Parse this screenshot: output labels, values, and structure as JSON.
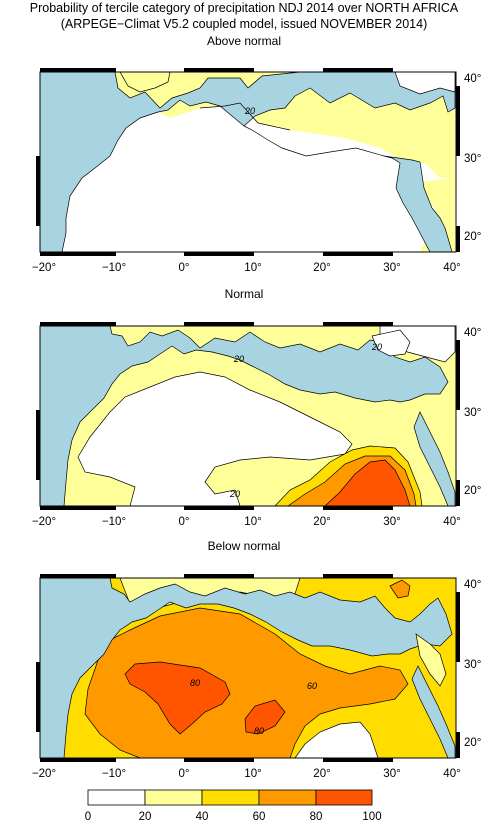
{
  "title_line1": "Probability of tercile category of precipitation NDJ 2014 over NORTH AFRICA",
  "title_line2": "(ARPEGE−Climat V5.2 coupled model, issued NOVEMBER 2014)",
  "panels": [
    {
      "title": "Above normal",
      "contour_labels": [
        "20"
      ]
    },
    {
      "title": "Normal",
      "contour_labels": [
        "20",
        "20",
        "20"
      ]
    },
    {
      "title": "Below normal",
      "contour_labels": [
        "80",
        "60",
        "80"
      ]
    }
  ],
  "axes": {
    "lon_ticks": [
      "−20°",
      "−10°",
      "0°",
      "10°",
      "20°",
      "30°",
      "40°"
    ],
    "lat_ticks": [
      "40°",
      "30°",
      "20°"
    ]
  },
  "colorbar": {
    "labels": [
      "0",
      "20",
      "40",
      "60",
      "80",
      "100"
    ],
    "colors": [
      "#ffffff",
      "#ffff99",
      "#ffdd00",
      "#ff9900",
      "#ff5500"
    ]
  },
  "colors": {
    "sea": "#a8d4e2",
    "land_low": "#ffffff"
  }
}
